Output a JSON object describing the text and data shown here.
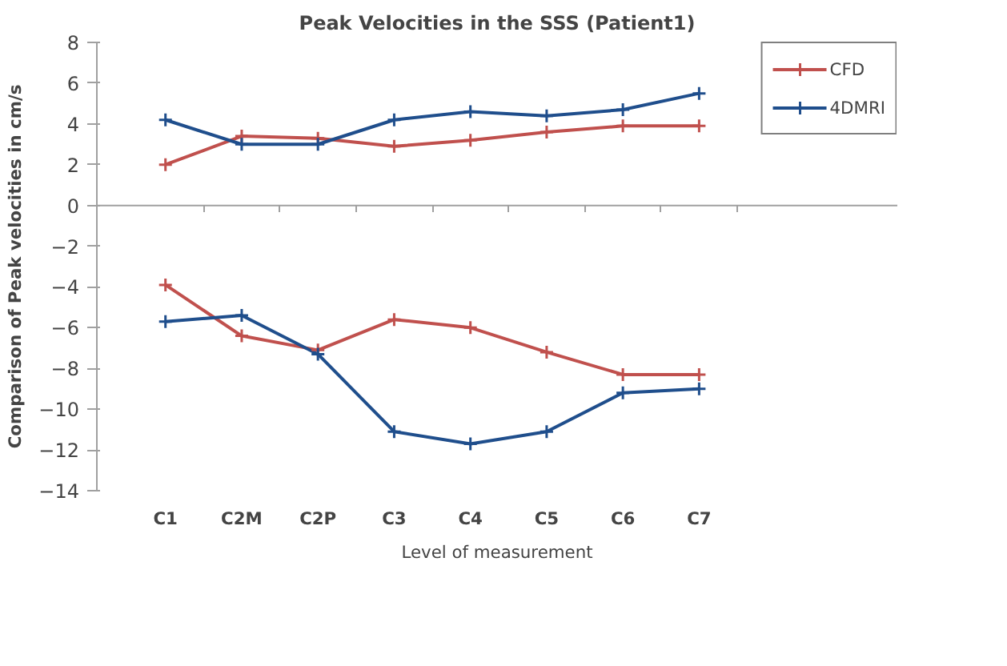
{
  "chart_data": {
    "type": "line",
    "title": "Peak Velocities in the SSS (Patient1)",
    "xlabel": "Level of measurement",
    "ylabel": "Comparison of Peak velocities in cm/s",
    "categories": [
      "C1",
      "C2M",
      "C2P",
      "C3",
      "C4",
      "C5",
      "C6",
      "C7"
    ],
    "series": [
      {
        "name": "CFD",
        "color": "#c0504d",
        "values": [
          2.0,
          3.4,
          3.3,
          2.9,
          3.2,
          3.6,
          3.9,
          3.9
        ]
      },
      {
        "name": "4DMRI",
        "color": "#1f4e8c",
        "values": [
          4.2,
          3.0,
          3.0,
          4.2,
          4.6,
          4.4,
          4.7,
          5.5
        ]
      },
      {
        "color": "#c0504d",
        "values": [
          -3.9,
          -6.4,
          -7.1,
          -5.6,
          -6.0,
          -7.2,
          -8.3,
          -8.3
        ]
      },
      {
        "color": "#1f4e8c",
        "values": [
          -5.7,
          -5.4,
          -7.3,
          -11.1,
          -11.7,
          -11.1,
          -9.2,
          -9.0
        ]
      }
    ],
    "ylim": [
      -14,
      8
    ],
    "yticks": [
      -14,
      -12,
      -10,
      -8,
      -6,
      -4,
      -2,
      0,
      2,
      4,
      6,
      8
    ],
    "ref_lines": [
      {
        "axis": "y",
        "value": 0,
        "color": "#a0a0a0"
      }
    ],
    "grid": false,
    "legend": "top right",
    "marker": "cross",
    "line_style": "solid"
  }
}
